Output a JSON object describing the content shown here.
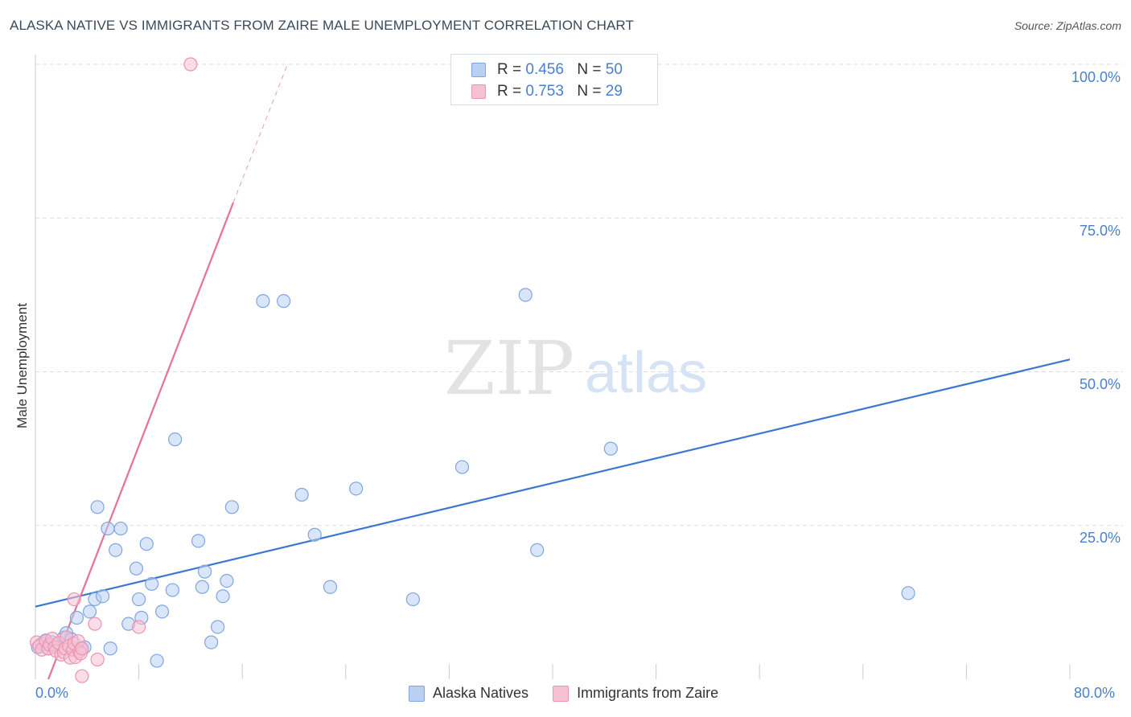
{
  "title": "ALASKA NATIVE VS IMMIGRANTS FROM ZAIRE MALE UNEMPLOYMENT CORRELATION CHART",
  "source": "Source: ZipAtlas.com",
  "watermark": {
    "zip": "ZIP",
    "atlas": "atlas"
  },
  "colors": {
    "blue": "#4a7fcf",
    "blue_fill": "#b9d0f2",
    "blue_line": "#3a78d0",
    "pink": "#e8709a",
    "pink_fill": "#f6c1d2",
    "grid": "#dcdcdc",
    "axis": "#cccccc"
  },
  "legend": [
    {
      "series": "Alaska Natives",
      "r_label": "R =",
      "r_value": "0.456",
      "n_label": "N =",
      "n_value": "50"
    },
    {
      "series": "Immigrants from Zaire",
      "r_label": "R =",
      "r_value": "0.753",
      "n_label": "N =",
      "n_value": "29"
    }
  ],
  "chart_data": {
    "type": "scatter",
    "title": "ALASKA NATIVE VS IMMIGRANTS FROM ZAIRE MALE UNEMPLOYMENT CORRELATION CHART",
    "xlabel": "",
    "ylabel": "Male Unemployment",
    "xlim": [
      0,
      80
    ],
    "ylim": [
      0,
      100
    ],
    "x_tick_labels": [
      "0.0%",
      "80.0%"
    ],
    "y_tick_labels": [
      "25.0%",
      "50.0%",
      "75.0%",
      "100.0%"
    ],
    "y_ticks": [
      25,
      50,
      75,
      100
    ],
    "grid": true,
    "series": [
      {
        "name": "Alaska Natives",
        "color": "#4a7fcf",
        "points": [
          [
            0.2,
            5.2
          ],
          [
            0.5,
            5.8
          ],
          [
            0.8,
            6.3
          ],
          [
            1.0,
            5.0
          ],
          [
            1.3,
            6.0
          ],
          [
            1.6,
            5.5
          ],
          [
            2.2,
            6.8
          ],
          [
            2.4,
            7.5
          ],
          [
            2.8,
            6.5
          ],
          [
            3.2,
            10.0
          ],
          [
            3.5,
            5.0
          ],
          [
            3.8,
            5.2
          ],
          [
            4.2,
            11.0
          ],
          [
            4.6,
            13.0
          ],
          [
            4.8,
            28.0
          ],
          [
            5.2,
            13.5
          ],
          [
            5.6,
            24.5
          ],
          [
            5.8,
            5.0
          ],
          [
            6.2,
            21.0
          ],
          [
            6.6,
            24.5
          ],
          [
            7.2,
            9.0
          ],
          [
            7.8,
            18.0
          ],
          [
            8.0,
            13.0
          ],
          [
            8.2,
            10.0
          ],
          [
            8.6,
            22.0
          ],
          [
            9.0,
            15.5
          ],
          [
            9.4,
            3.0
          ],
          [
            9.8,
            11.0
          ],
          [
            10.6,
            14.5
          ],
          [
            10.8,
            39.0
          ],
          [
            12.6,
            22.5
          ],
          [
            12.9,
            15.0
          ],
          [
            13.1,
            17.5
          ],
          [
            13.6,
            6.0
          ],
          [
            14.1,
            8.5
          ],
          [
            14.5,
            13.5
          ],
          [
            14.8,
            16.0
          ],
          [
            15.2,
            28.0
          ],
          [
            17.6,
            61.5
          ],
          [
            19.2,
            61.5
          ],
          [
            20.6,
            30.0
          ],
          [
            21.6,
            23.5
          ],
          [
            22.8,
            15.0
          ],
          [
            24.8,
            31.0
          ],
          [
            29.2,
            13.0
          ],
          [
            33.0,
            34.5
          ],
          [
            37.9,
            62.5
          ],
          [
            38.8,
            21.0
          ],
          [
            44.5,
            37.5
          ],
          [
            67.5,
            14.0
          ]
        ],
        "trend": {
          "x": [
            0,
            80
          ],
          "y": [
            11.8,
            52.0
          ]
        }
      },
      {
        "name": "Immigrants from Zaire",
        "color": "#e8709a",
        "points": [
          [
            0.1,
            6.0
          ],
          [
            0.3,
            5.4
          ],
          [
            0.5,
            4.8
          ],
          [
            0.8,
            6.2
          ],
          [
            1.0,
            5.0
          ],
          [
            1.1,
            5.6
          ],
          [
            1.3,
            6.6
          ],
          [
            1.5,
            5.2
          ],
          [
            1.6,
            4.6
          ],
          [
            1.8,
            5.9
          ],
          [
            2.0,
            4.0
          ],
          [
            2.2,
            4.4
          ],
          [
            2.3,
            5.0
          ],
          [
            2.4,
            6.8
          ],
          [
            2.6,
            5.4
          ],
          [
            2.7,
            3.5
          ],
          [
            2.9,
            4.8
          ],
          [
            3.0,
            5.8
          ],
          [
            3.1,
            3.6
          ],
          [
            3.3,
            6.2
          ],
          [
            3.4,
            4.5
          ],
          [
            3.0,
            13.0
          ],
          [
            3.5,
            4.2
          ],
          [
            3.6,
            5.0
          ],
          [
            3.6,
            0.5
          ],
          [
            4.6,
            9.0
          ],
          [
            4.8,
            3.2
          ],
          [
            8.0,
            8.5
          ],
          [
            12.0,
            100.0
          ]
        ],
        "trend": {
          "x": [
            1.0,
            15.3
          ],
          "y": [
            0.0,
            77.5
          ]
        },
        "trend_extension": {
          "x": [
            15.3,
            19.5
          ],
          "y": [
            77.5,
            100.0
          ]
        }
      }
    ]
  }
}
